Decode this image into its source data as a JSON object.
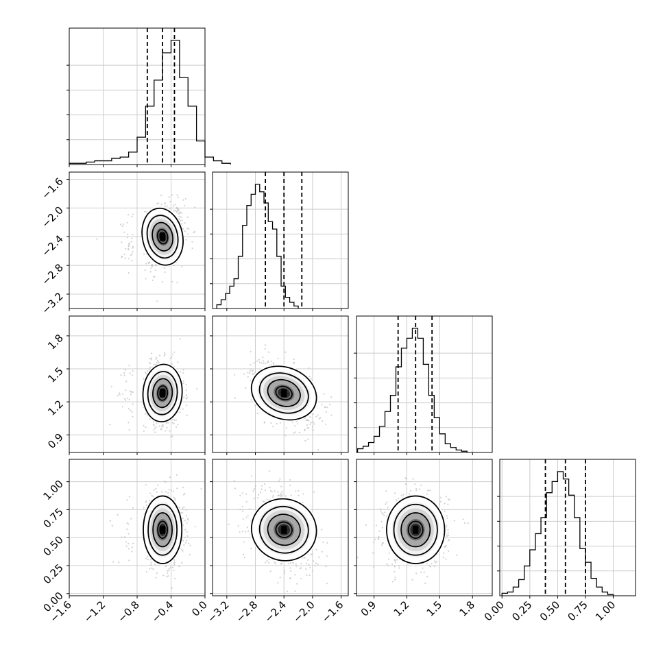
{
  "chart_data": {
    "type": "corner",
    "title": "",
    "parameters": [
      {
        "label": "",
        "range": [
          -1.6,
          0.0
        ],
        "ticks": [
          "−1.6",
          "−1.2",
          "−0.8",
          "−0.4",
          "0.0"
        ],
        "tick_values": [
          -1.6,
          -1.2,
          -0.8,
          -0.4,
          0.0
        ],
        "quantiles": [
          -0.68,
          -0.5,
          -0.36
        ],
        "center": -0.5,
        "sigma": 0.12
      },
      {
        "label": "",
        "range": [
          -3.4,
          -1.5
        ],
        "ticks": [
          "−3.2",
          "−2.8",
          "−2.4",
          "−2.0",
          "−1.6"
        ],
        "tick_values": [
          -3.2,
          -2.8,
          -2.4,
          -2.0,
          -1.6
        ],
        "quantiles": [
          -2.66,
          -2.4,
          -2.15
        ],
        "center": -2.4,
        "sigma": 0.22
      },
      {
        "label": "",
        "range": [
          0.74,
          1.98
        ],
        "ticks": [
          "0.9",
          "1.2",
          "1.5",
          "1.8"
        ],
        "tick_values": [
          0.9,
          1.2,
          1.5,
          1.8
        ],
        "quantiles": [
          1.12,
          1.28,
          1.43
        ],
        "center": 1.28,
        "sigma": 0.14
      },
      {
        "label": "",
        "range": [
          -0.02,
          1.2
        ],
        "ticks": [
          "0.00",
          "0.25",
          "0.50",
          "0.75",
          "1.00"
        ],
        "tick_values": [
          0.0,
          0.25,
          0.5,
          0.75,
          1.0
        ],
        "quantiles": [
          0.39,
          0.57,
          0.75
        ],
        "center": 0.57,
        "sigma": 0.16
      }
    ],
    "histograms": [
      {
        "param": 0,
        "x_edges_start": -1.6,
        "bin_width": 0.1,
        "counts": [
          0.01,
          0.01,
          0.02,
          0.03,
          0.03,
          0.05,
          0.06,
          0.1,
          0.22,
          0.47,
          0.68,
          0.9,
          1.0,
          0.7,
          0.47,
          0.19,
          0.06,
          0.03,
          0.01
        ],
        "bins_note": ""
      },
      {
        "param": 1,
        "x_edges_start": -3.34,
        "bin_width": 0.06,
        "counts": [
          0.03,
          0.07,
          0.12,
          0.18,
          0.24,
          0.42,
          0.67,
          0.83,
          0.92,
          1.0,
          0.94,
          0.85,
          0.7,
          0.64,
          0.42,
          0.18,
          0.09,
          0.05,
          0.02
        ]
      },
      {
        "param": 2,
        "x_edges_start": 0.75,
        "bin_width": 0.05,
        "counts": [
          0.03,
          0.05,
          0.08,
          0.13,
          0.21,
          0.33,
          0.46,
          0.69,
          0.84,
          0.92,
          1.0,
          0.92,
          0.71,
          0.46,
          0.28,
          0.15,
          0.07,
          0.04,
          0.02,
          0.01
        ]
      },
      {
        "param": 3,
        "x_edges_start": 0.0,
        "bin_width": 0.05,
        "counts": [
          0.02,
          0.03,
          0.07,
          0.13,
          0.24,
          0.37,
          0.5,
          0.63,
          0.83,
          0.92,
          1.0,
          0.94,
          0.81,
          0.63,
          0.38,
          0.27,
          0.14,
          0.07,
          0.03,
          0.01
        ]
      }
    ],
    "pairs": [
      {
        "x_param": 0,
        "y_param": 1,
        "correlation": 0.15
      },
      {
        "x_param": 0,
        "y_param": 2,
        "correlation": -0.05
      },
      {
        "x_param": 1,
        "y_param": 2,
        "correlation": -0.45
      },
      {
        "x_param": 0,
        "y_param": 3,
        "correlation": 0.0
      },
      {
        "x_param": 1,
        "y_param": 3,
        "correlation": -0.35
      },
      {
        "x_param": 2,
        "y_param": 3,
        "correlation": 0.0
      }
    ],
    "contour_levels_sigma": [
      0.5,
      1.0,
      1.5,
      2.0
    ],
    "quantile_line_style": "dashed",
    "grid": true,
    "colors": {
      "lines": "#000000",
      "points": "#bdbdbd",
      "grid": "#cccccc",
      "density_dark": "#000000"
    }
  }
}
